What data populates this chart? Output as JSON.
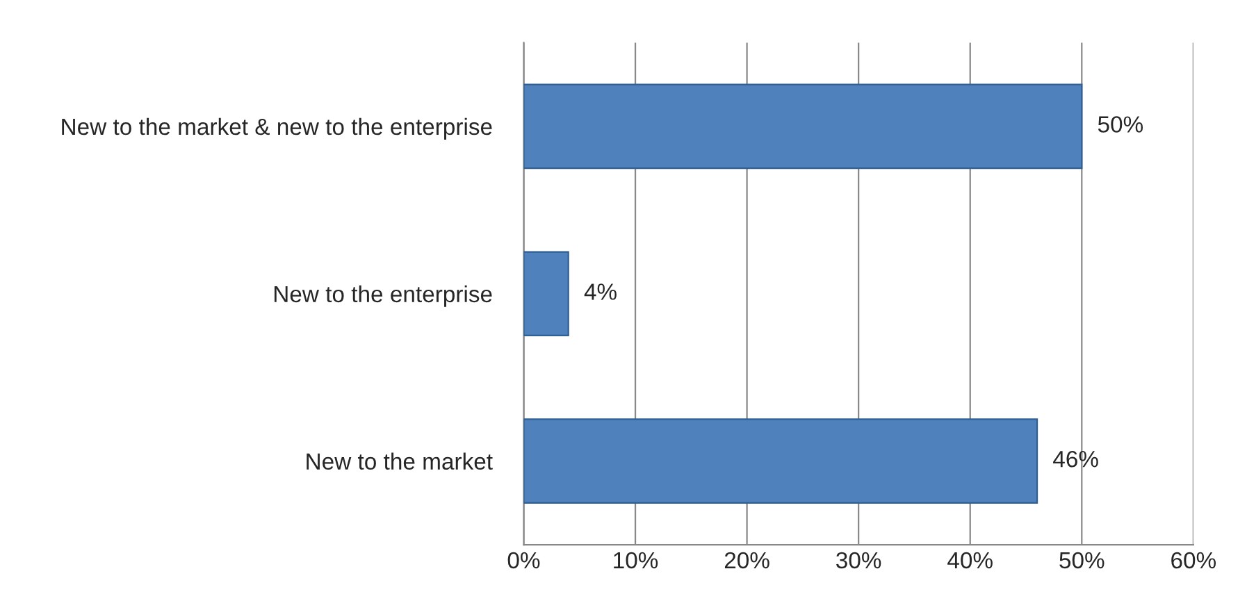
{
  "chart_data": {
    "type": "bar",
    "orientation": "horizontal",
    "categories": [
      "New to the market & new to the enterprise",
      "New to the enterprise",
      "New to the market"
    ],
    "values": [
      50,
      4,
      46
    ],
    "value_labels": [
      "50%",
      "4%",
      "46%"
    ],
    "color": "#4f81bd",
    "xlim": [
      0,
      60
    ],
    "xticks": [
      {
        "value": 0,
        "label": "0%"
      },
      {
        "value": 10,
        "label": "10%"
      },
      {
        "value": 20,
        "label": "20%"
      },
      {
        "value": 30,
        "label": "30%"
      },
      {
        "value": 40,
        "label": "40%"
      },
      {
        "value": 50,
        "label": "50%"
      },
      {
        "value": 60,
        "label": "60%"
      }
    ],
    "grid": "x",
    "legend": false
  }
}
